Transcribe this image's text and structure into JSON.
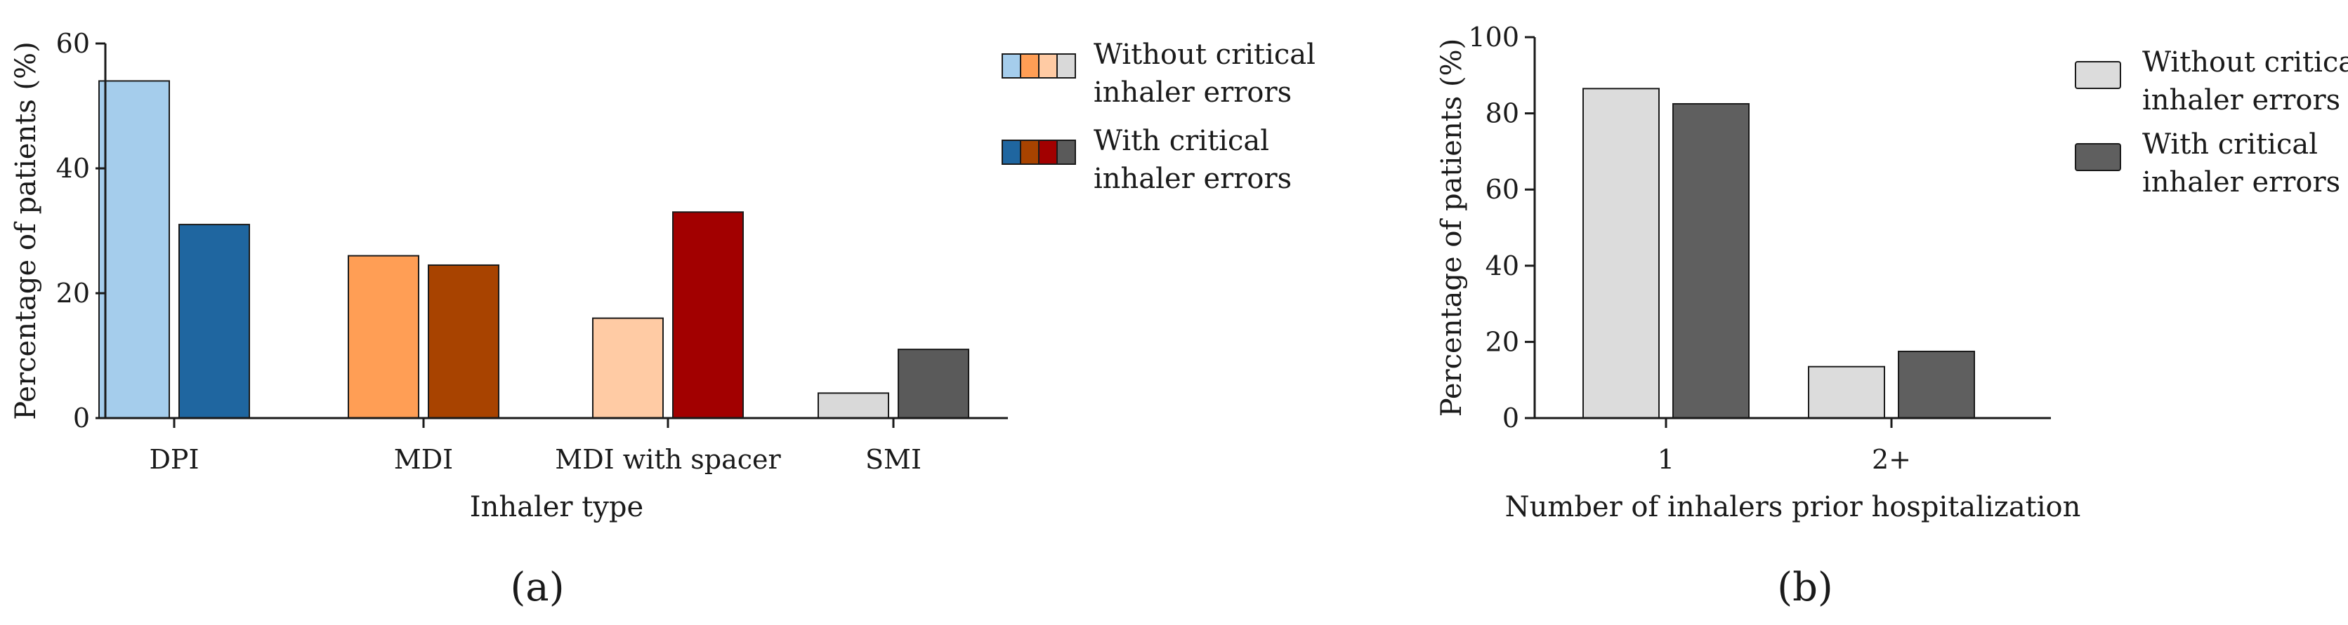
{
  "chart_data": [
    {
      "panel": "(a)",
      "type": "bar",
      "xlabel": "Inhaler type",
      "ylabel": "Percentage of patients (%)",
      "ylim": [
        0,
        60
      ],
      "yticks": [
        "0",
        "20",
        "40",
        "60"
      ],
      "categories": [
        "DPI",
        "MDI",
        "MDI with spacer",
        "SMI"
      ],
      "series": [
        {
          "name": "Without critical inhaler errors",
          "values": [
            54,
            26,
            16,
            4
          ],
          "colors": [
            "#a5cdec",
            "#ff9e55",
            "#ffcba4",
            "#d9d9d9"
          ]
        },
        {
          "name": "With critical inhaler errors",
          "values": [
            31,
            24.5,
            33,
            11
          ],
          "colors": [
            "#1f66a0",
            "#a84300",
            "#a20000",
            "#5a5a5a"
          ]
        }
      ],
      "legend": {
        "placement": "top-right",
        "entries": [
          {
            "line1": "Without critical",
            "line2": "inhaler errors",
            "swatches": [
              "#a5cdec",
              "#ff9e55",
              "#ffcba4",
              "#d9d9d9"
            ]
          },
          {
            "line1": "With critical",
            "line2": "inhaler errors",
            "swatches": [
              "#1f66a0",
              "#a84300",
              "#a20000",
              "#5a5a5a"
            ]
          }
        ]
      },
      "grid": false
    },
    {
      "panel": "(b)",
      "type": "bar",
      "xlabel": "Number of inhalers prior hospitalization",
      "ylabel": "Percentage of patients (%)",
      "ylim": [
        0,
        100
      ],
      "yticks": [
        "0",
        "20",
        "40",
        "60",
        "80",
        "100"
      ],
      "categories": [
        "1",
        "2+"
      ],
      "series": [
        {
          "name": "Without critical inhaler errors",
          "values": [
            86.5,
            13.5
          ],
          "colors": [
            "#dcdcdc",
            "#dcdcdc"
          ]
        },
        {
          "name": "With critical inhaler errors",
          "values": [
            82.5,
            17.5
          ],
          "colors": [
            "#5f5f5f",
            "#5f5f5f"
          ]
        }
      ],
      "legend": {
        "placement": "top-right",
        "entries": [
          {
            "line1": "Without critical",
            "line2": "inhaler errors",
            "swatches": [
              "#dcdcdc"
            ]
          },
          {
            "line1": "With critical",
            "line2": "inhaler errors",
            "swatches": [
              "#5f5f5f"
            ]
          }
        ]
      },
      "grid": false
    }
  ]
}
